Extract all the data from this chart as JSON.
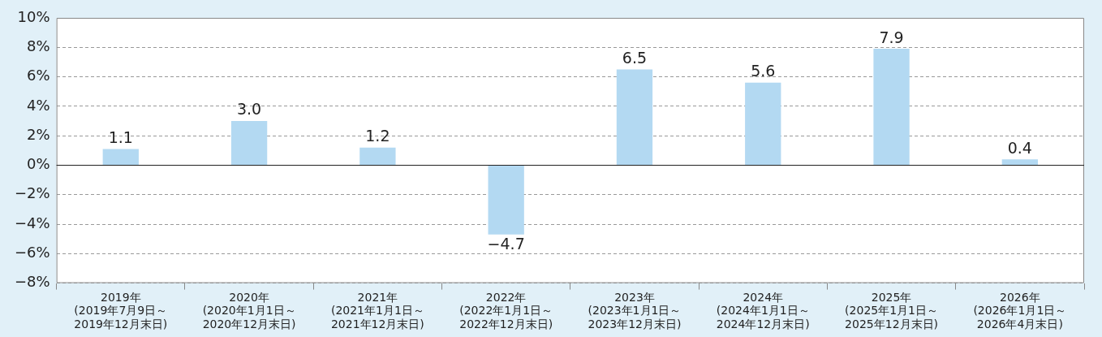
{
  "chart_data": {
    "type": "bar",
    "categories": [
      "2019年\n(2019年7月9日～\n2019年12月末日)",
      "2020年\n(2020年1月1日～\n2020年12月末日)",
      "2021年\n(2021年1月1日～\n2021年12月末日)",
      "2022年\n(2022年1月1日～\n2022年12月末日)",
      "2023年\n(2023年1月1日～\n2023年12月末日)",
      "2024年\n(2024年1月1日～\n2024年12月末日)",
      "2025年\n(2025年1月1日～\n2025年12月末日)",
      "2026年\n(2026年1月1日～\n2026年4月末日)"
    ],
    "values": [
      1.1,
      3.0,
      1.2,
      -4.7,
      6.5,
      5.6,
      7.9,
      0.4
    ],
    "value_labels": [
      "1.1",
      "3.0",
      "1.2",
      "−4.7",
      "6.5",
      "5.6",
      "7.9",
      "0.4"
    ],
    "color": "#b3d9f2",
    "ylim": [
      -8,
      10
    ],
    "yticks": [
      {
        "value": -8,
        "label": "−8%"
      },
      {
        "value": -6,
        "label": "−6%"
      },
      {
        "value": -4,
        "label": "−4%"
      },
      {
        "value": -2,
        "label": "−2%"
      },
      {
        "value": 0,
        "label": "0%"
      },
      {
        "value": 2,
        "label": "2%"
      },
      {
        "value": 4,
        "label": "4%"
      },
      {
        "value": 6,
        "label": "6%"
      },
      {
        "value": 8,
        "label": "8%"
      },
      {
        "value": 10,
        "label": "10%"
      }
    ],
    "grid": "y",
    "legend": false
  }
}
